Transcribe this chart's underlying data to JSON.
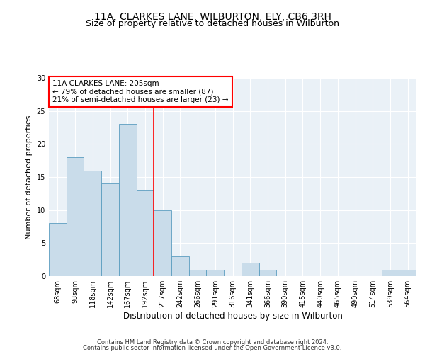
{
  "title": "11A, CLARKES LANE, WILBURTON, ELY, CB6 3RH",
  "subtitle": "Size of property relative to detached houses in Wilburton",
  "xlabel": "Distribution of detached houses by size in Wilburton",
  "ylabel": "Number of detached properties",
  "categories": [
    "68sqm",
    "93sqm",
    "118sqm",
    "142sqm",
    "167sqm",
    "192sqm",
    "217sqm",
    "242sqm",
    "266sqm",
    "291sqm",
    "316sqm",
    "341sqm",
    "366sqm",
    "390sqm",
    "415sqm",
    "440sqm",
    "465sqm",
    "490sqm",
    "514sqm",
    "539sqm",
    "564sqm"
  ],
  "values": [
    8,
    18,
    16,
    14,
    23,
    13,
    10,
    3,
    1,
    1,
    0,
    2,
    1,
    0,
    0,
    0,
    0,
    0,
    0,
    1,
    1
  ],
  "bar_color": "#c9dcea",
  "bar_edge_color": "#5b9dc0",
  "vline_x": 5.5,
  "vline_color": "red",
  "annotation_text": "11A CLARKES LANE: 205sqm\n← 79% of detached houses are smaller (87)\n21% of semi-detached houses are larger (23) →",
  "annotation_box_color": "white",
  "annotation_box_edge_color": "red",
  "ylim": [
    0,
    30
  ],
  "yticks": [
    0,
    5,
    10,
    15,
    20,
    25,
    30
  ],
  "footer_line1": "Contains HM Land Registry data © Crown copyright and database right 2024.",
  "footer_line2": "Contains public sector information licensed under the Open Government Licence v3.0.",
  "bg_color": "#eaf1f7",
  "grid_color": "white",
  "title_fontsize": 10,
  "subtitle_fontsize": 9,
  "tick_fontsize": 7,
  "ylabel_fontsize": 8,
  "xlabel_fontsize": 8.5,
  "annotation_fontsize": 7.5,
  "footer_fontsize": 6
}
